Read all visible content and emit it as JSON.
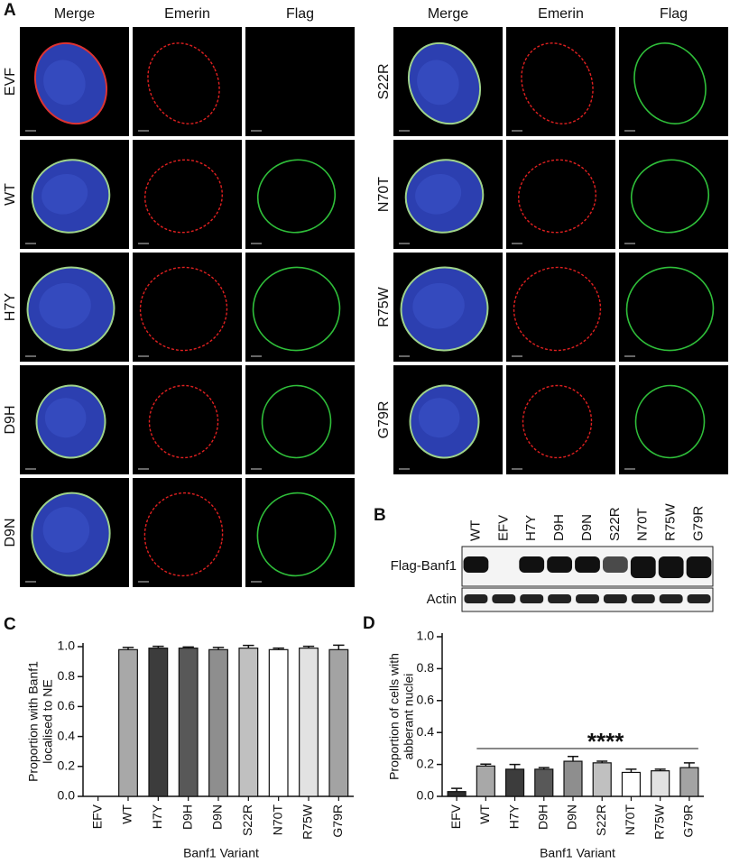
{
  "panel_a": {
    "label": "A",
    "left": {
      "columns": [
        "Merge",
        "Emerin",
        "Flag"
      ],
      "rows": [
        "EVF",
        "WT",
        "H7Y",
        "D9H",
        "D9N"
      ]
    },
    "right": {
      "columns": [
        "Merge",
        "Emerin",
        "Flag"
      ],
      "rows": [
        "S22R",
        "N70T",
        "R75W",
        "G79R"
      ]
    }
  },
  "panel_b": {
    "label": "B",
    "lanes": [
      "WT",
      "EFV",
      "H7Y",
      "D9H",
      "D9N",
      "S22R",
      "N70T",
      "R75W",
      "G79R"
    ],
    "rows": [
      "Flag-Banf1",
      "Actin"
    ]
  },
  "chart_data": [
    {
      "type": "bar",
      "label": "C",
      "y_label": [
        "Proportion with Banf1",
        "localised to NE"
      ],
      "x_label": "Banf1 Variant",
      "categories": [
        "EFV",
        "WT",
        "H7Y",
        "D9H",
        "D9N",
        "S22R",
        "N70T",
        "R75W",
        "G79R"
      ],
      "values": [
        0,
        0.98,
        0.99,
        0.99,
        0.98,
        0.99,
        0.98,
        0.99,
        0.98
      ],
      "errors": [
        null,
        0.015,
        0.012,
        0.008,
        0.015,
        0.018,
        0.01,
        0.012,
        0.03
      ],
      "colors": [
        "#333333",
        "#a8a8a8",
        "#3c3c3c",
        "#585858",
        "#8e8e8e",
        "#c0c0c0",
        "#ffffff",
        "#e2e2e2",
        "#a3a3a3"
      ],
      "ylim": [
        0,
        1.0
      ],
      "yticks": [
        {
          "value": 0,
          "label": "0.0"
        },
        {
          "value": 0.2,
          "label": "0.2"
        },
        {
          "value": 0.4,
          "label": "0.4"
        },
        {
          "value": 0.6,
          "label": "0.6"
        },
        {
          "value": 0.8,
          "label": "0.8"
        },
        {
          "value": 1.0,
          "label": "1.0"
        }
      ]
    },
    {
      "type": "bar",
      "label": "D",
      "y_label": [
        "Proportion of  cells with",
        "abberant nuclei"
      ],
      "x_label": "Banf1 Variant",
      "annotation": "****",
      "categories": [
        "EFV",
        "WT",
        "H7Y",
        "D9H",
        "D9N",
        "S22R",
        "N70T",
        "R75W",
        "G79R"
      ],
      "values": [
        0.03,
        0.19,
        0.17,
        0.17,
        0.22,
        0.21,
        0.15,
        0.16,
        0.18
      ],
      "errors": [
        0.02,
        0.012,
        0.03,
        0.01,
        0.03,
        0.01,
        0.02,
        0.01,
        0.03
      ],
      "colors": [
        "#2e2e2e",
        "#a8a8a8",
        "#3c3c3c",
        "#585858",
        "#8e8e8e",
        "#c0c0c0",
        "#ffffff",
        "#e2e2e2",
        "#a3a3a3"
      ],
      "ylim": [
        0,
        1.0
      ],
      "yticks": [
        {
          "value": 0,
          "label": "0.0"
        },
        {
          "value": 0.2,
          "label": "0.2"
        },
        {
          "value": 0.4,
          "label": "0.4"
        },
        {
          "value": 0.6,
          "label": "0.6"
        },
        {
          "value": 0.8,
          "label": "0.8"
        },
        {
          "value": 1.0,
          "label": "1.0"
        }
      ]
    }
  ]
}
